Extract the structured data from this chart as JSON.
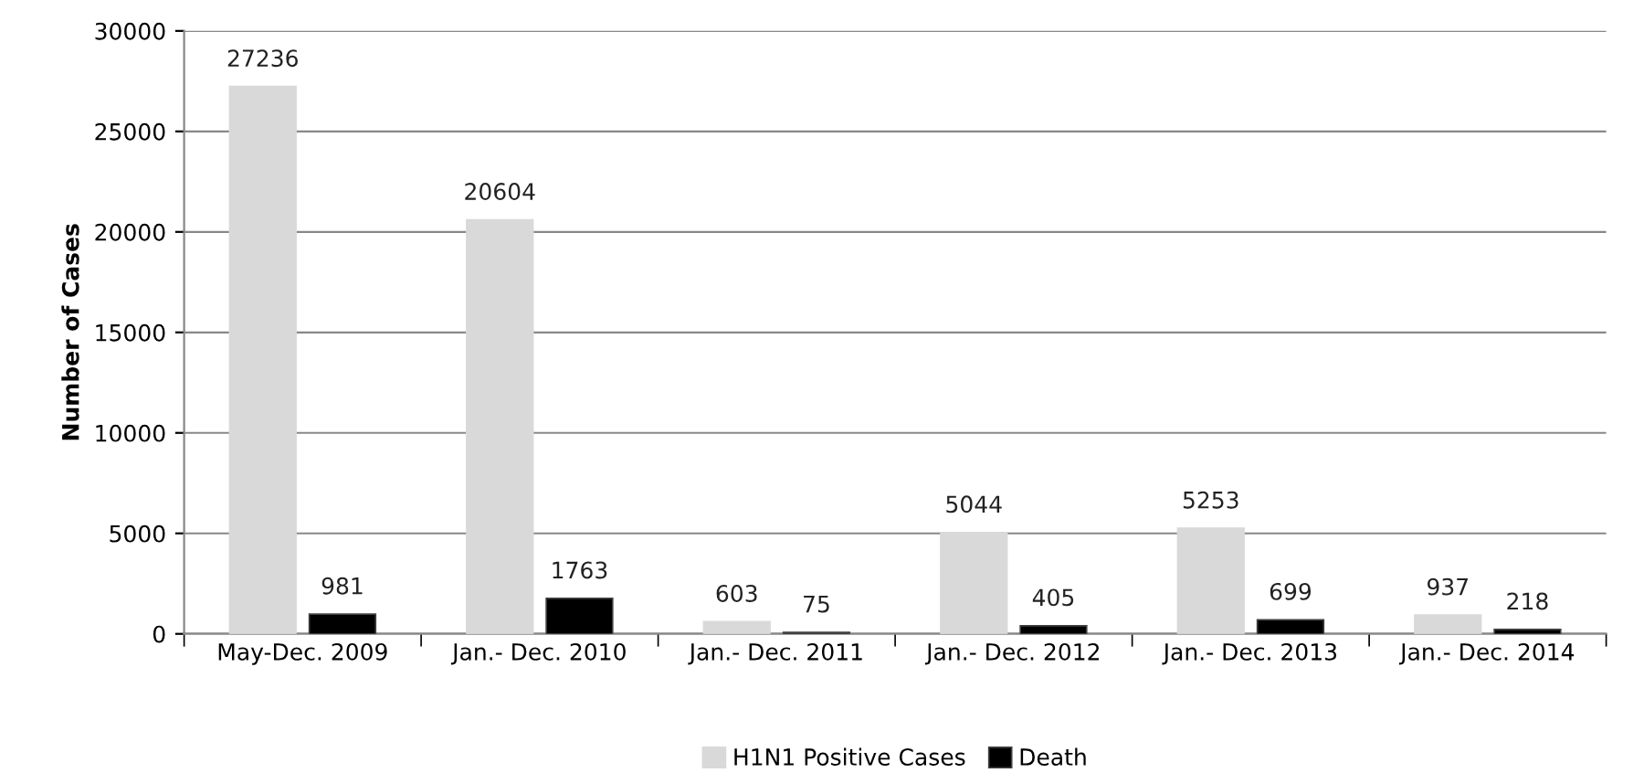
{
  "chart_data": {
    "type": "bar",
    "ylabel": "Number of Cases",
    "categories": [
      "May-Dec. 2009",
      "Jan.- Dec. 2010",
      "Jan.- Dec. 2011",
      "Jan.- Dec. 2012",
      "Jan.- Dec. 2013",
      "Jan.- Dec. 2014"
    ],
    "series": [
      {
        "name": "H1N1 Positive Cases",
        "color": "#d9d9d9",
        "values": [
          27236,
          20604,
          603,
          5044,
          5253,
          937
        ]
      },
      {
        "name": "Death",
        "color": "#000000",
        "values": [
          981,
          1763,
          75,
          405,
          699,
          218
        ]
      }
    ],
    "ylim": [
      0,
      30000
    ],
    "yticks": [
      0,
      5000,
      10000,
      15000,
      20000,
      25000,
      30000
    ],
    "grid": "y",
    "legend": "bottom",
    "data_labels": true
  }
}
